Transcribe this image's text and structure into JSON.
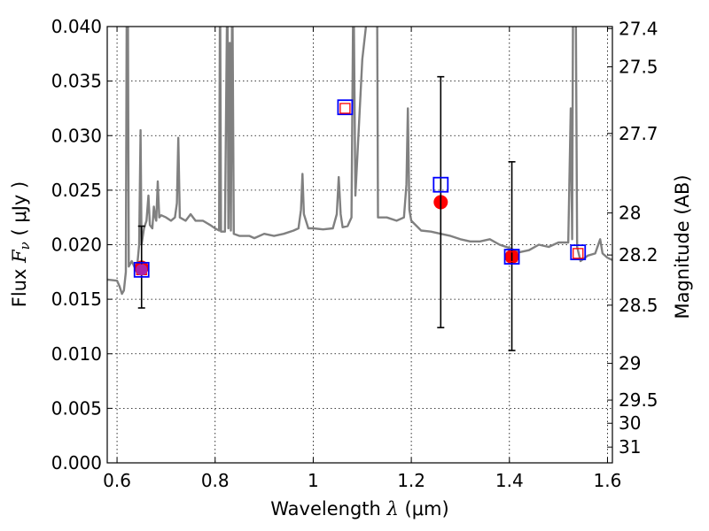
{
  "chart_data": {
    "type": "scatter",
    "title": "",
    "xlabel": {
      "prefix": "Wavelength  ",
      "symbol": "λ",
      "unit": " (μm)"
    },
    "ylabel": {
      "prefix": "Flux  ",
      "symbol": "F",
      "subscript": "ν",
      "unit": "  ( μJy )"
    },
    "y2label": "Magnitude (AB)",
    "xlim": [
      0.58,
      1.61
    ],
    "ylim": [
      0.0,
      0.04
    ],
    "grid": true,
    "grid_style": "dotted",
    "x_ticks": [
      0.6,
      0.8,
      1.0,
      1.2,
      1.4,
      1.6
    ],
    "x_tick_labels": [
      "0.6",
      "0.8",
      "1",
      "1.2",
      "1.4",
      "1.6"
    ],
    "y_ticks": [
      0.0,
      0.005,
      0.01,
      0.015,
      0.02,
      0.025,
      0.03,
      0.035,
      0.04
    ],
    "y_tick_labels": [
      "0.000",
      "0.005",
      "0.010",
      "0.015",
      "0.020",
      "0.025",
      "0.030",
      "0.035",
      "0.040"
    ],
    "mag_ticks": [
      27.4,
      27.5,
      27.7,
      28,
      28.2,
      28.5,
      29,
      29.5,
      30,
      31
    ],
    "mag_tick_labels": [
      "27.4",
      "27.5",
      "27.7",
      "28",
      "28.2",
      "28.5",
      "29",
      "29.5",
      "30",
      "31"
    ],
    "model_spectrum": {
      "color": "#808080",
      "points": [
        [
          0.58,
          0.0168
        ],
        [
          0.6,
          0.0167
        ],
        [
          0.605,
          0.0162
        ],
        [
          0.61,
          0.0155
        ],
        [
          0.614,
          0.0158
        ],
        [
          0.618,
          0.0175
        ],
        [
          0.62,
          0.045
        ],
        [
          0.622,
          0.045
        ],
        [
          0.624,
          0.018
        ],
        [
          0.63,
          0.0185
        ],
        [
          0.64,
          0.0175
        ],
        [
          0.645,
          0.02
        ],
        [
          0.648,
          0.0305
        ],
        [
          0.65,
          0.02
        ],
        [
          0.655,
          0.0215
        ],
        [
          0.66,
          0.0222
        ],
        [
          0.664,
          0.0245
        ],
        [
          0.667,
          0.0218
        ],
        [
          0.672,
          0.0215
        ],
        [
          0.675,
          0.0235
        ],
        [
          0.678,
          0.0225
        ],
        [
          0.68,
          0.0222
        ],
        [
          0.683,
          0.0258
        ],
        [
          0.686,
          0.0225
        ],
        [
          0.69,
          0.0227
        ],
        [
          0.7,
          0.0225
        ],
        [
          0.71,
          0.0222
        ],
        [
          0.718,
          0.0225
        ],
        [
          0.722,
          0.0238
        ],
        [
          0.725,
          0.0298
        ],
        [
          0.728,
          0.0225
        ],
        [
          0.74,
          0.0222
        ],
        [
          0.75,
          0.0228
        ],
        [
          0.76,
          0.0222
        ],
        [
          0.775,
          0.0222
        ],
        [
          0.79,
          0.0218
        ],
        [
          0.8,
          0.0215
        ],
        [
          0.808,
          0.0213
        ],
        [
          0.81,
          0.045
        ],
        [
          0.812,
          0.0212
        ],
        [
          0.82,
          0.0212
        ],
        [
          0.825,
          0.045
        ],
        [
          0.827,
          0.0215
        ],
        [
          0.83,
          0.0385
        ],
        [
          0.832,
          0.0213
        ],
        [
          0.835,
          0.045
        ],
        [
          0.838,
          0.021
        ],
        [
          0.85,
          0.0208
        ],
        [
          0.87,
          0.0208
        ],
        [
          0.88,
          0.0206
        ],
        [
          0.9,
          0.021
        ],
        [
          0.92,
          0.0208
        ],
        [
          0.94,
          0.021
        ],
        [
          0.96,
          0.0213
        ],
        [
          0.97,
          0.0215
        ],
        [
          0.975,
          0.0232
        ],
        [
          0.978,
          0.0265
        ],
        [
          0.981,
          0.0228
        ],
        [
          0.99,
          0.0215
        ],
        [
          1.0,
          0.0215
        ],
        [
          1.02,
          0.0214
        ],
        [
          1.04,
          0.0215
        ],
        [
          1.048,
          0.0228
        ],
        [
          1.052,
          0.0262
        ],
        [
          1.056,
          0.0228
        ],
        [
          1.06,
          0.0216
        ],
        [
          1.07,
          0.0217
        ],
        [
          1.078,
          0.0225
        ],
        [
          1.082,
          0.045
        ],
        [
          1.086,
          0.0245
        ],
        [
          1.1,
          0.037
        ],
        [
          1.12,
          0.045
        ],
        [
          1.13,
          0.045
        ],
        [
          1.132,
          0.0225
        ],
        [
          1.15,
          0.0225
        ],
        [
          1.17,
          0.0222
        ],
        [
          1.185,
          0.0225
        ],
        [
          1.19,
          0.0255
        ],
        [
          1.193,
          0.0325
        ],
        [
          1.196,
          0.0232
        ],
        [
          1.2,
          0.0222
        ],
        [
          1.22,
          0.0213
        ],
        [
          1.24,
          0.0212
        ],
        [
          1.26,
          0.021
        ],
        [
          1.28,
          0.0208
        ],
        [
          1.3,
          0.0205
        ],
        [
          1.32,
          0.0203
        ],
        [
          1.34,
          0.0203
        ],
        [
          1.36,
          0.0205
        ],
        [
          1.38,
          0.02
        ],
        [
          1.4,
          0.0197
        ],
        [
          1.42,
          0.0193
        ],
        [
          1.44,
          0.0195
        ],
        [
          1.46,
          0.02
        ],
        [
          1.48,
          0.0198
        ],
        [
          1.5,
          0.0202
        ],
        [
          1.52,
          0.0202
        ],
        [
          1.525,
          0.0325
        ],
        [
          1.528,
          0.0205
        ],
        [
          1.53,
          0.045
        ],
        [
          1.535,
          0.045
        ],
        [
          1.538,
          0.0198
        ],
        [
          1.545,
          0.0185
        ],
        [
          1.56,
          0.019
        ],
        [
          1.575,
          0.0192
        ],
        [
          1.585,
          0.0205
        ],
        [
          1.59,
          0.0192
        ],
        [
          1.6,
          0.0188
        ],
        [
          1.61,
          0.0186
        ]
      ]
    },
    "series": [
      {
        "marker": "circle",
        "color": "#ff0000",
        "points": [
          {
            "x": 0.65,
            "y": 0.0179
          },
          {
            "x": 1.26,
            "y": 0.0239
          },
          {
            "x": 1.405,
            "y": 0.0189
          }
        ]
      },
      {
        "marker": "errorbar",
        "color": "#000000",
        "points": [
          {
            "x": 0.65,
            "low": 0.0142,
            "high": 0.0217
          },
          {
            "x": 1.26,
            "low": 0.0124,
            "high": 0.0354
          },
          {
            "x": 1.405,
            "low": 0.0103,
            "high": 0.0276
          }
        ]
      },
      {
        "marker": "open-square",
        "color": "#0000ff",
        "points": [
          {
            "x": 0.65,
            "y": 0.0177
          },
          {
            "x": 1.065,
            "y": 0.0326
          },
          {
            "x": 1.26,
            "y": 0.0255
          },
          {
            "x": 1.405,
            "y": 0.0189
          },
          {
            "x": 1.54,
            "y": 0.0193
          }
        ]
      },
      {
        "marker": "small-open-square",
        "color": "#ff0000",
        "points": [
          {
            "x": 0.65,
            "y": 0.0177
          },
          {
            "x": 1.065,
            "y": 0.0325
          },
          {
            "x": 1.405,
            "y": 0.0189
          },
          {
            "x": 1.54,
            "y": 0.0192
          }
        ]
      },
      {
        "marker": "magenta-circle",
        "color": "#aa22aa",
        "points": [
          {
            "x": 0.65,
            "y": 0.0177
          }
        ]
      }
    ]
  }
}
